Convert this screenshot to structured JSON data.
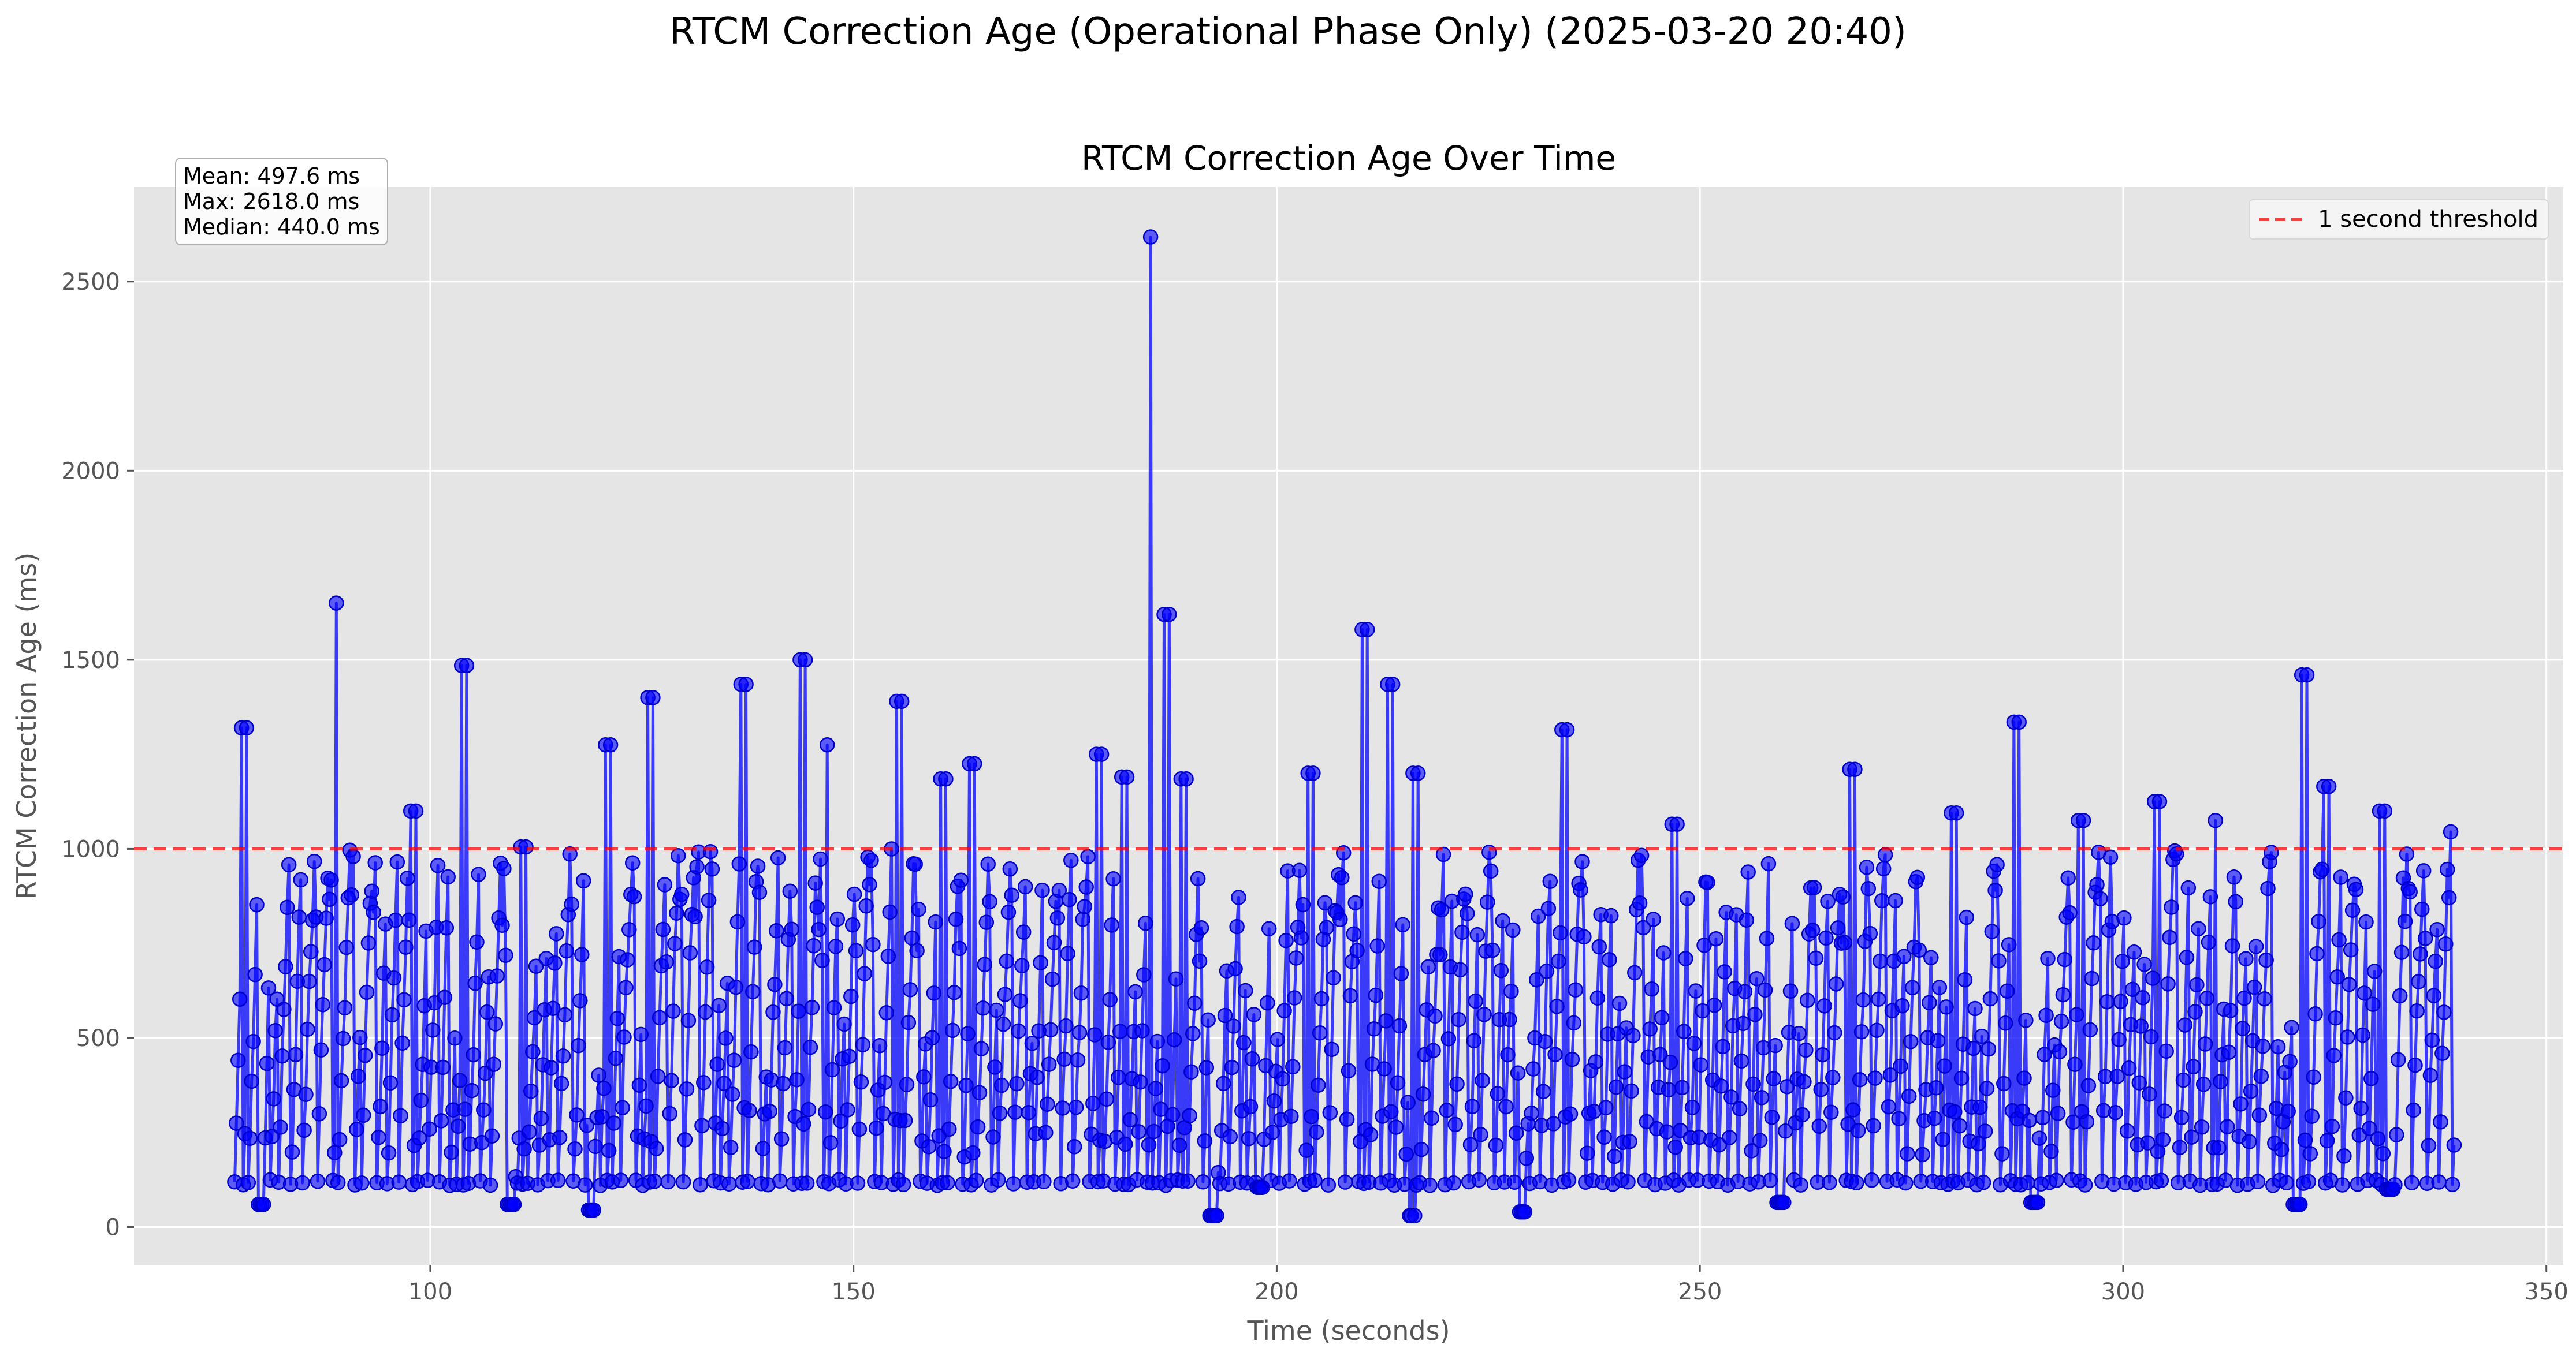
{
  "figure": {
    "suptitle": "RTCM Correction Age (Operational Phase Only) (2025-03-20 20:40)",
    "stats": [
      {
        "label": "Mean",
        "value": "497.6 ms"
      },
      {
        "label": "Max",
        "value": "2618.0 ms"
      },
      {
        "label": "Median",
        "value": "440.0 ms"
      }
    ],
    "stats_text": [
      "Mean: 497.6 ms",
      "Max: 2618.0 ms",
      "Median: 440.0 ms"
    ]
  },
  "chart_data": {
    "type": "line",
    "title": "RTCM Correction Age Over Time",
    "xlabel": "Time (seconds)",
    "ylabel": "RTCM Correction Age (ms)",
    "xlim": [
      65,
      352
    ],
    "ylim": [
      -100,
      2750
    ],
    "xticks": [
      100,
      150,
      200,
      250,
      300,
      350
    ],
    "yticks": [
      0,
      500,
      1000,
      1500,
      2000,
      2500
    ],
    "grid": true,
    "legend_position": "top-right",
    "series": [
      {
        "color": "#0000ff",
        "marker": "circle",
        "x_start": 76.9,
        "x_end": 339.2,
        "x_step": 0.2,
        "y_floor": 110,
        "y_min": 30,
        "peaks": [
          [
            78,
            1320
          ],
          [
            89,
            1650
          ],
          [
            98,
            1100
          ],
          [
            104,
            1485
          ],
          [
            111,
            1005
          ],
          [
            121,
            1275
          ],
          [
            126,
            1400
          ],
          [
            137,
            1435
          ],
          [
            144,
            1500
          ],
          [
            147,
            1275
          ],
          [
            155.5,
            1390
          ],
          [
            160.5,
            1185
          ],
          [
            164,
            1225
          ],
          [
            179,
            1250
          ],
          [
            182,
            1190
          ],
          [
            185.2,
            2618
          ],
          [
            187,
            1620
          ],
          [
            189,
            1185
          ],
          [
            204,
            1200
          ],
          [
            210.5,
            1580
          ],
          [
            213.5,
            1435
          ],
          [
            216.5,
            1200
          ],
          [
            234,
            1315
          ],
          [
            247,
            1065
          ],
          [
            268,
            1210
          ],
          [
            280,
            1095
          ],
          [
            287.5,
            1335
          ],
          [
            295,
            1075
          ],
          [
            304,
            1125
          ],
          [
            311,
            1075
          ],
          [
            321.5,
            1460
          ],
          [
            324,
            1165
          ],
          [
            330.5,
            1100
          ],
          [
            339,
            1045
          ]
        ],
        "dips": [
          [
            80,
            60
          ],
          [
            109.5,
            60
          ],
          [
            119,
            45
          ],
          [
            192.5,
            30
          ],
          [
            198,
            105
          ],
          [
            216,
            30
          ],
          [
            229,
            40
          ],
          [
            259.5,
            65
          ],
          [
            289.5,
            65
          ],
          [
            320.5,
            60
          ],
          [
            331.5,
            100
          ]
        ]
      }
    ],
    "stats": {
      "mean": 497.6,
      "max": 2618.0,
      "median": 440.0
    },
    "threshold": {
      "y": 1000,
      "label": "1 second threshold",
      "color": "#ff0000",
      "style": "dashed"
    }
  }
}
